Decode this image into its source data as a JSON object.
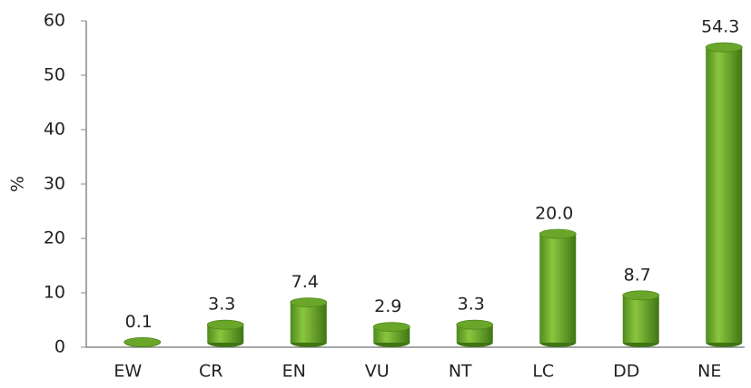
{
  "chart_data": {
    "type": "bar",
    "y_label": "%",
    "categories": [
      "EW",
      "CR",
      "EN",
      "VU",
      "NT",
      "LC",
      "DD",
      "NE"
    ],
    "values": [
      0.1,
      3.3,
      7.4,
      2.9,
      3.3,
      20.0,
      8.7,
      54.3
    ],
    "value_labels": [
      "0.1",
      "3.3",
      "7.4",
      "2.9",
      "3.3",
      "20.0",
      "8.7",
      "54.3"
    ],
    "color": "#6aa62a",
    "ylim": [
      0,
      60
    ],
    "yticks": [
      0,
      10,
      20,
      30,
      40,
      50,
      60
    ],
    "grid": false
  }
}
